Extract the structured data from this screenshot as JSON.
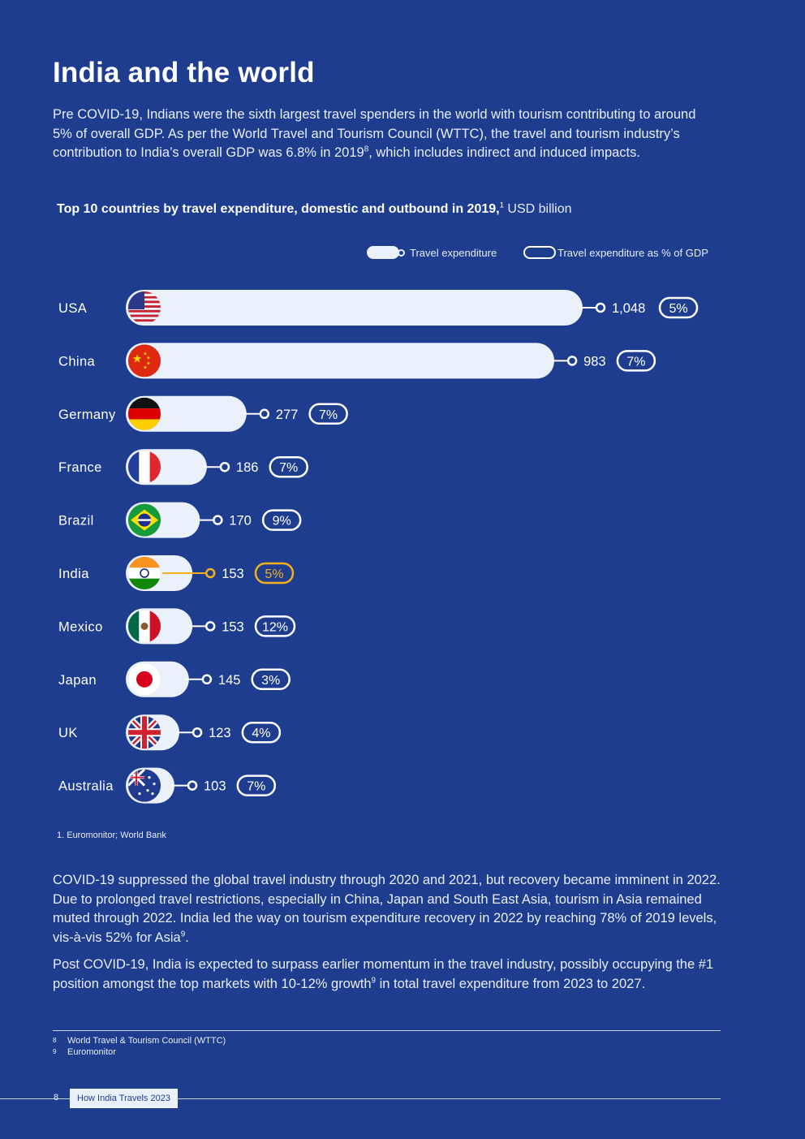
{
  "page": {
    "title": "India and the world",
    "intro": "Pre COVID-19, Indians were the sixth largest travel spenders in the world with tourism contributing to around 5% of overall GDP. As per the World Travel and Tourism Council (WTTC), the travel and tourism industry’s contribution to India’s overall GDP was 6.8% in 2019",
    "intro_ref": "8",
    "intro_tail": ", which includes indirect and induced impacts.",
    "source_note": "1. Euromonitor; World Bank",
    "body_p1": "COVID-19 suppressed the global travel industry through 2020 and 2021, but recovery became imminent in 2022. Due to prolonged travel restrictions, especially in China, Japan and South East Asia, tourism in Asia remained muted through 2022. India led the way on tourism expenditure recovery in 2022 by reaching 78% of 2019 levels, vis-à-vis 52% for Asia",
    "body_p1_ref": "9",
    "body_p1_tail": ".",
    "body_p2": "Post COVID-19, India is expected to surpass earlier momentum in the travel industry, possibly occupying the #1 position amongst the top markets with 10-12% growth",
    "body_p2_ref": "9",
    "body_p2_tail": " in total travel expenditure from 2023 to 2027.",
    "footnotes": [
      {
        "num": "8",
        "text": "World Travel & Tourism Council (WTTC)"
      },
      {
        "num": "9",
        "text": "Euromonitor"
      }
    ],
    "page_number": "8",
    "doc_title": "How India Travels 2023"
  },
  "chart_data": {
    "type": "bar",
    "orientation": "horizontal",
    "title": "Top 10 countries by travel expenditure, domestic and outbound in 2019,",
    "title_ref": "1",
    "unit": "USD billion",
    "legend": [
      "Travel expenditure",
      "Travel expenditure as % of GDP"
    ],
    "categories": [
      "USA",
      "China",
      "Germany",
      "France",
      "Brazil",
      "India",
      "Mexico",
      "Japan",
      "UK",
      "Australia"
    ],
    "values": [
      1048,
      983,
      277,
      186,
      170,
      153,
      153,
      145,
      123,
      103
    ],
    "value_labels": [
      "1,048",
      "983",
      "277",
      "186",
      "170",
      "153",
      "153",
      "145",
      "123",
      "103"
    ],
    "gdp_share_labels": [
      "5%",
      "7%",
      "7%",
      "7%",
      "9%",
      "5%",
      "12%",
      "3%",
      "4%",
      "7%"
    ],
    "highlight": "India",
    "flags": [
      "usa-flag-icon",
      "china-flag-icon",
      "germany-flag-icon",
      "france-flag-icon",
      "brazil-flag-icon",
      "india-flag-icon",
      "mexico-flag-icon",
      "japan-flag-icon",
      "uk-flag-icon",
      "australia-flag-icon"
    ],
    "colors": {
      "bar": "#eaf1fb",
      "background": "#1e3d8f",
      "highlight": "#f2b01e",
      "text": "#ffffff"
    }
  }
}
